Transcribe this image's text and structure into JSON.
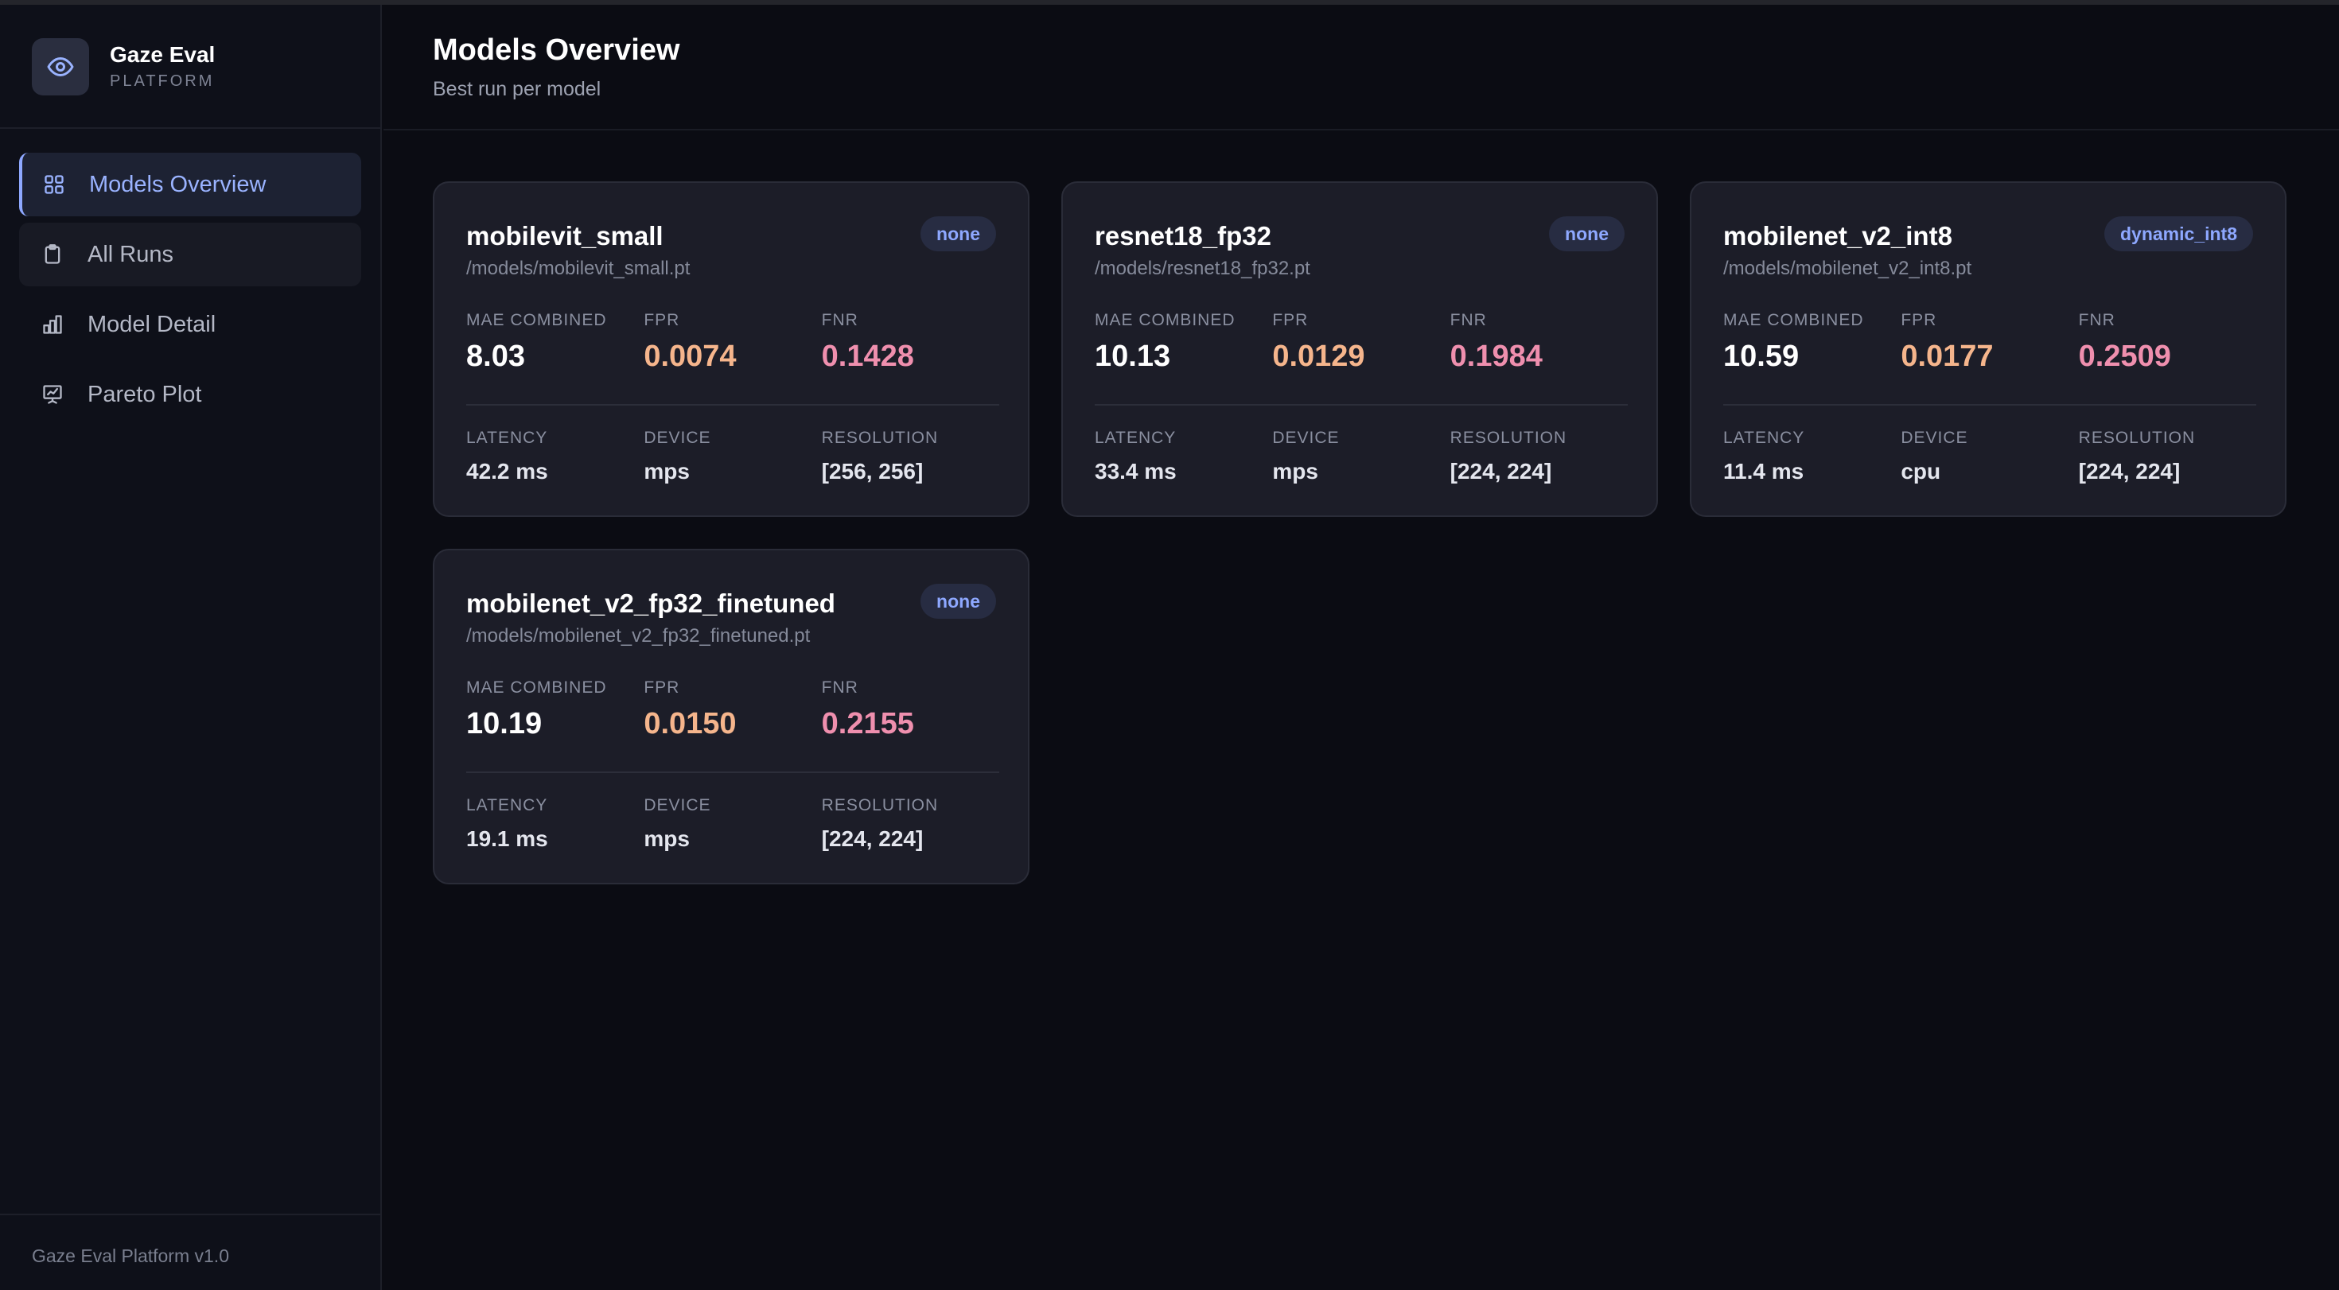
{
  "app": {
    "name": "Gaze Eval",
    "subtitle": "PLATFORM",
    "footer": "Gaze Eval Platform v1.0"
  },
  "sidebar": {
    "items": [
      {
        "label": "Models Overview",
        "icon": "grid-icon",
        "active": true
      },
      {
        "label": "All Runs",
        "icon": "clipboard-icon",
        "active": false
      },
      {
        "label": "Model Detail",
        "icon": "bar-chart-icon",
        "active": false
      },
      {
        "label": "Pareto Plot",
        "icon": "presentation-chart-icon",
        "active": false
      }
    ]
  },
  "header": {
    "title": "Models Overview",
    "subtitle": "Best run per model"
  },
  "labels": {
    "mae": "MAE COMBINED",
    "fpr": "FPR",
    "fnr": "FNR",
    "latency": "LATENCY",
    "device": "DEVICE",
    "resolution": "RESOLUTION"
  },
  "cards": [
    {
      "name": "mobilevit_small",
      "path": "/models/mobilevit_small.pt",
      "quantization": "none",
      "mae": "8.03",
      "fpr": "0.0074",
      "fnr": "0.1428",
      "latency": "42.2 ms",
      "device": "mps",
      "resolution": "[256, 256]"
    },
    {
      "name": "resnet18_fp32",
      "path": "/models/resnet18_fp32.pt",
      "quantization": "none",
      "mae": "10.13",
      "fpr": "0.0129",
      "fnr": "0.1984",
      "latency": "33.4 ms",
      "device": "mps",
      "resolution": "[224, 224]"
    },
    {
      "name": "mobilenet_v2_int8",
      "path": "/models/mobilenet_v2_int8.pt",
      "quantization": "dynamic_int8",
      "mae": "10.59",
      "fpr": "0.0177",
      "fnr": "0.2509",
      "latency": "11.4 ms",
      "device": "cpu",
      "resolution": "[224, 224]"
    },
    {
      "name": "mobilenet_v2_fp32_finetuned",
      "path": "/models/mobilenet_v2_fp32_finetuned.pt",
      "quantization": "none",
      "mae": "10.19",
      "fpr": "0.0150",
      "fnr": "0.2155",
      "latency": "19.1 ms",
      "device": "mps",
      "resolution": "[224, 224]"
    }
  ],
  "colors": {
    "accent": "#8ea8ff",
    "fpr": "#f5b58c",
    "fnr": "#ef8fae",
    "background": "#0b0c13",
    "card": "#1c1d28"
  }
}
